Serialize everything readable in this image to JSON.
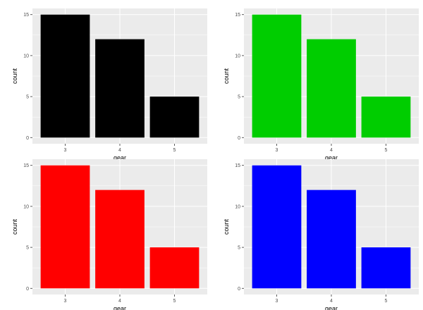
{
  "chart_data": [
    {
      "type": "bar",
      "xlabel": "gear",
      "ylabel": "count",
      "categories": [
        "3",
        "4",
        "5"
      ],
      "values": [
        15,
        12,
        5
      ],
      "ylim": [
        0,
        15.75
      ],
      "yticks": [
        "0",
        "5",
        "10",
        "15"
      ],
      "fill": "#000000",
      "panel_bg": "#ebebeb",
      "grid": true
    },
    {
      "type": "bar",
      "xlabel": "gear",
      "ylabel": "count",
      "categories": [
        "3",
        "4",
        "5"
      ],
      "values": [
        15,
        12,
        5
      ],
      "ylim": [
        0,
        15.75
      ],
      "yticks": [
        "0",
        "5",
        "10",
        "15"
      ],
      "fill": "#00cd00",
      "panel_bg": "#ebebeb",
      "grid": true
    },
    {
      "type": "bar",
      "xlabel": "gear",
      "ylabel": "count",
      "categories": [
        "3",
        "4",
        "5"
      ],
      "values": [
        15,
        12,
        5
      ],
      "ylim": [
        0,
        15.75
      ],
      "yticks": [
        "0",
        "5",
        "10",
        "15"
      ],
      "fill": "#ff0000",
      "panel_bg": "#ebebeb",
      "grid": true
    },
    {
      "type": "bar",
      "xlabel": "gear",
      "ylabel": "count",
      "categories": [
        "3",
        "4",
        "5"
      ],
      "values": [
        15,
        12,
        5
      ],
      "ylim": [
        0,
        15.75
      ],
      "yticks": [
        "0",
        "5",
        "10",
        "15"
      ],
      "fill": "#0000ff",
      "panel_bg": "#ebebeb",
      "grid": true
    }
  ]
}
